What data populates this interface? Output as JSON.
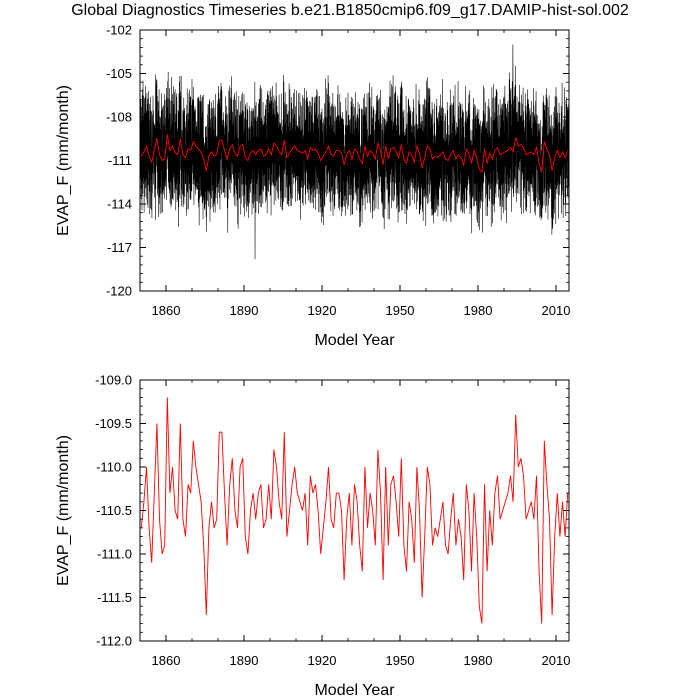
{
  "title": "Global Diagnostics Timeseries b.e21.B1850cmip6.f09_g17.DAMIP-hist-sol.002",
  "colors": {
    "monthly": "#000000",
    "annual": "#ff0000"
  },
  "chart_data": [
    {
      "type": "line",
      "title": "",
      "xlabel": "Model Year",
      "ylabel": "EVAP_F (mm/month)",
      "xlim": [
        1850,
        2015
      ],
      "ylim": [
        -120,
        -102
      ],
      "xticks": [
        1860,
        1890,
        1920,
        1950,
        1980,
        2010
      ],
      "xtick_labels": [
        "1860",
        "1890",
        "1920",
        "1950",
        "1980",
        "2010"
      ],
      "yticks": [
        -120,
        -117,
        -114,
        -111,
        -108,
        -105,
        -102
      ],
      "ytick_labels": [
        "-120",
        "-117",
        "-114",
        "-111",
        "-108",
        "-105",
        "-102"
      ],
      "series": [
        {
          "style": "monthly",
          "note": "monthly values oscillating roughly between -117.5 and -103",
          "x_start": 1850,
          "x_end": 2014,
          "points_per_year": 12,
          "mean": -110.6,
          "amplitude": 3.1,
          "values": []
        },
        {
          "style": "annual",
          "x_start": 1850,
          "x_end": 2014,
          "values_ref": "chart_data.1.series.0.values"
        }
      ],
      "grid": false,
      "legend": "none"
    },
    {
      "type": "line",
      "title": "",
      "xlabel": "Model Year",
      "ylabel": "EVAP_F (mm/month)",
      "xlim": [
        1850,
        2015
      ],
      "ylim": [
        -112.0,
        -109.0
      ],
      "xticks": [
        1860,
        1890,
        1920,
        1950,
        1980,
        2010
      ],
      "xtick_labels": [
        "1860",
        "1890",
        "1920",
        "1950",
        "1980",
        "2010"
      ],
      "yticks": [
        -112.0,
        -111.5,
        -111.0,
        -110.5,
        -110.0,
        -109.5,
        -109.0
      ],
      "ytick_labels": [
        "-112.0",
        "-111.5",
        "-111.0",
        "-110.5",
        "-110.0",
        "-109.5",
        "-109.0"
      ],
      "series": [
        {
          "style": "annual",
          "x_start": 1850,
          "values": [
            -110.7,
            -110.4,
            -110.0,
            -110.7,
            -111.1,
            -110.3,
            -109.5,
            -110.6,
            -111.0,
            -110.9,
            -109.2,
            -110.3,
            -110.0,
            -110.5,
            -110.6,
            -109.5,
            -110.6,
            -110.8,
            -110.2,
            -110.3,
            -109.7,
            -110.0,
            -110.2,
            -110.4,
            -110.9,
            -111.7,
            -110.7,
            -110.4,
            -110.7,
            -110.6,
            -109.6,
            -109.6,
            -110.3,
            -110.9,
            -110.2,
            -109.9,
            -110.5,
            -110.7,
            -110.0,
            -109.9,
            -110.8,
            -111.0,
            -110.5,
            -110.3,
            -110.6,
            -110.3,
            -110.2,
            -110.7,
            -110.6,
            -110.2,
            -110.6,
            -109.8,
            -110.0,
            -110.4,
            -110.6,
            -109.6,
            -110.8,
            -110.5,
            -110.2,
            -110.0,
            -110.3,
            -110.4,
            -110.5,
            -110.3,
            -110.9,
            -110.1,
            -110.3,
            -110.2,
            -110.5,
            -111.0,
            -110.7,
            -110.4,
            -110.0,
            -110.6,
            -110.7,
            -110.3,
            -110.3,
            -110.5,
            -111.3,
            -110.6,
            -110.3,
            -110.9,
            -110.2,
            -110.4,
            -110.9,
            -111.2,
            -110.0,
            -110.7,
            -110.3,
            -110.5,
            -110.9,
            -109.8,
            -110.3,
            -111.3,
            -110.0,
            -110.9,
            -110.2,
            -110.1,
            -110.4,
            -110.8,
            -109.9,
            -110.9,
            -111.2,
            -110.4,
            -110.6,
            -111.1,
            -110.0,
            -110.5,
            -111.5,
            -110.8,
            -110.0,
            -110.2,
            -110.9,
            -110.7,
            -110.8,
            -110.6,
            -110.4,
            -110.9,
            -111.0,
            -110.6,
            -110.3,
            -110.9,
            -110.6,
            -110.8,
            -111.3,
            -110.2,
            -110.5,
            -111.2,
            -110.3,
            -110.8,
            -111.6,
            -111.8,
            -110.2,
            -111.2,
            -110.5,
            -110.9,
            -110.3,
            -110.1,
            -110.6,
            -110.5,
            -110.4,
            -110.3,
            -110.1,
            -110.4,
            -109.4,
            -110.0,
            -109.9,
            -110.1,
            -110.6,
            -110.5,
            -110.4,
            -110.6,
            -110.1,
            -111.2,
            -111.8,
            -109.7,
            -110.2,
            -110.6,
            -111.7,
            -110.8,
            -110.3,
            -110.8,
            -110.4,
            -110.8,
            -110.3
          ]
        }
      ],
      "grid": false,
      "legend": "none"
    }
  ]
}
